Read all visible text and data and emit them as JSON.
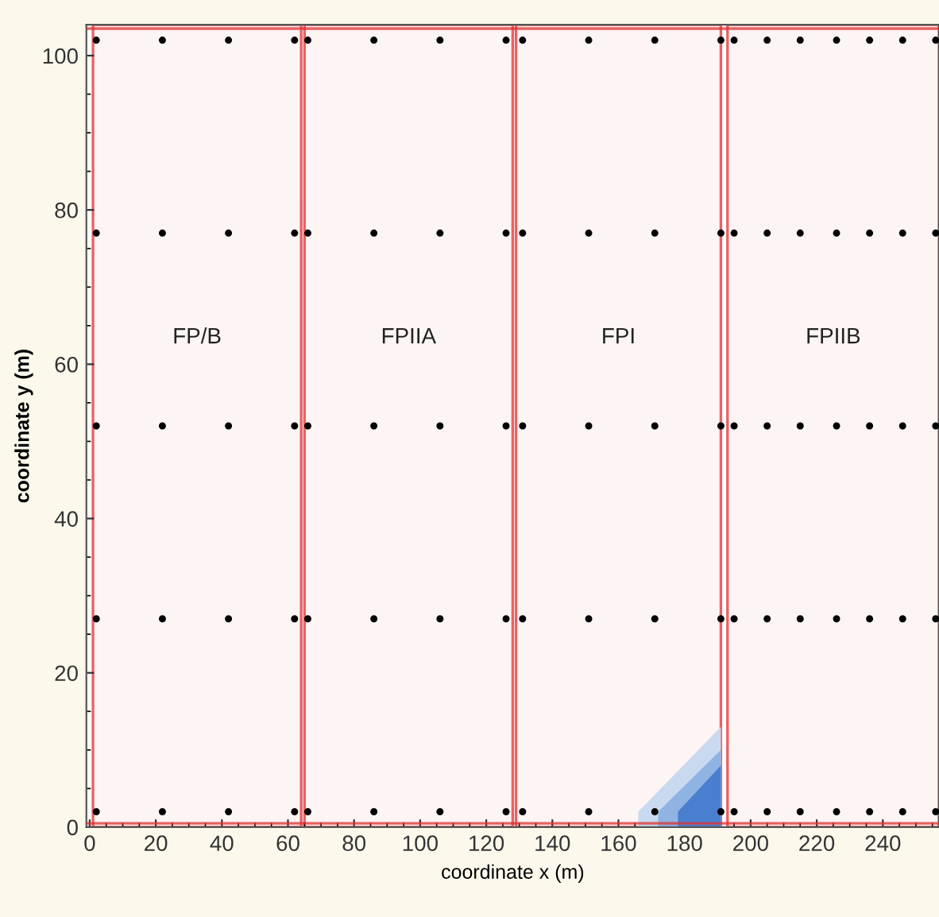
{
  "chart_data": {
    "type": "scatter",
    "xlabel": "coordinate x (m)",
    "ylabel": "coordinate y (m)",
    "xlim": [
      -1,
      257
    ],
    "ylim": [
      0,
      104
    ],
    "xticks": [
      0,
      20,
      40,
      60,
      80,
      100,
      120,
      140,
      160,
      180,
      200,
      220,
      240
    ],
    "yticks": [
      0,
      20,
      40,
      60,
      80,
      100
    ],
    "grid": false,
    "series": [
      {
        "type": "area",
        "color": "#c9daf0",
        "x": [
          166,
          191
        ],
        "values": [
          2,
          13
        ]
      },
      {
        "type": "area",
        "color": "#8fb3e3",
        "x": [
          172,
          191
        ],
        "values": [
          2,
          10
        ]
      },
      {
        "type": "area",
        "color": "#4a7fcf",
        "x": [
          178,
          191
        ],
        "values": [
          2,
          8
        ]
      },
      {
        "marker": "circle",
        "color": "#000000",
        "x": [
          2,
          22,
          42,
          62,
          66,
          86,
          106,
          126,
          131,
          151,
          171,
          191,
          195,
          205,
          215,
          226,
          236,
          246,
          256,
          2,
          22,
          42,
          62,
          66,
          86,
          106,
          126,
          131,
          151,
          171,
          191,
          195,
          205,
          215,
          226,
          236,
          246,
          256,
          2,
          22,
          42,
          62,
          66,
          86,
          106,
          126,
          131,
          151,
          171,
          191,
          195,
          205,
          215,
          226,
          236,
          246,
          256,
          2,
          22,
          42,
          62,
          66,
          86,
          106,
          126,
          131,
          151,
          171,
          191,
          195,
          205,
          215,
          226,
          236,
          246,
          256,
          2,
          22,
          42,
          62,
          66,
          86,
          106,
          126,
          131,
          151,
          171,
          191,
          195,
          205,
          215,
          226,
          236,
          246,
          256
        ],
        "values": [
          102,
          102,
          102,
          102,
          102,
          102,
          102,
          102,
          102,
          102,
          102,
          102,
          102,
          102,
          102,
          102,
          102,
          102,
          102,
          77,
          77,
          77,
          77,
          77,
          77,
          77,
          77,
          77,
          77,
          77,
          77,
          77,
          77,
          77,
          77,
          77,
          77,
          77,
          52,
          52,
          52,
          52,
          52,
          52,
          52,
          52,
          52,
          52,
          52,
          52,
          52,
          52,
          52,
          52,
          52,
          52,
          52,
          27,
          27,
          27,
          27,
          27,
          27,
          27,
          27,
          27,
          27,
          27,
          27,
          27,
          27,
          27,
          27,
          27,
          27,
          27,
          2,
          2,
          2,
          2,
          2,
          2,
          2,
          2,
          2,
          2,
          2,
          2,
          2,
          2,
          2,
          2,
          2,
          2,
          2
        ]
      }
    ],
    "ref_lines": [
      {
        "axis": "y",
        "value": 0.5,
        "color": "#e03030"
      },
      {
        "axis": "y",
        "value": 103.5,
        "color": "#e03030"
      }
    ],
    "bands": [
      {
        "axis": "x",
        "from": 1,
        "to": 64,
        "label": "FP/B",
        "color": "#e03030"
      },
      {
        "axis": "x",
        "from": 65,
        "to": 128,
        "label": "FPIIA",
        "color": "#e03030"
      },
      {
        "axis": "x",
        "from": 129,
        "to": 191,
        "label": "FPI",
        "color": "#e03030"
      },
      {
        "axis": "x",
        "from": 193,
        "to": 257,
        "label": "FPIIB",
        "color": "#e03030"
      }
    ]
  }
}
